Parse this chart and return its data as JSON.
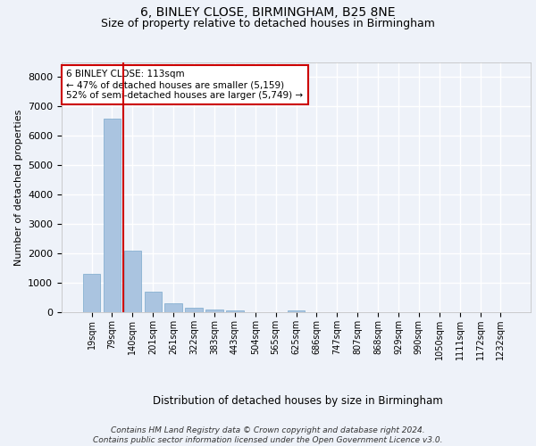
{
  "title": "6, BINLEY CLOSE, BIRMINGHAM, B25 8NE",
  "subtitle": "Size of property relative to detached houses in Birmingham",
  "xlabel": "Distribution of detached houses by size in Birmingham",
  "ylabel": "Number of detached properties",
  "footer_line1": "Contains HM Land Registry data © Crown copyright and database right 2024.",
  "footer_line2": "Contains public sector information licensed under the Open Government Licence v3.0.",
  "annotation_line1": "6 BINLEY CLOSE: 113sqm",
  "annotation_line2": "← 47% of detached houses are smaller (5,159)",
  "annotation_line3": "52% of semi-detached houses are larger (5,749) →",
  "bar_categories": [
    "19sqm",
    "79sqm",
    "140sqm",
    "201sqm",
    "261sqm",
    "322sqm",
    "383sqm",
    "443sqm",
    "504sqm",
    "565sqm",
    "625sqm",
    "686sqm",
    "747sqm",
    "807sqm",
    "868sqm",
    "929sqm",
    "990sqm",
    "1050sqm",
    "1111sqm",
    "1172sqm",
    "1232sqm"
  ],
  "bar_values": [
    1300,
    6600,
    2100,
    700,
    290,
    150,
    100,
    60,
    0,
    0,
    60,
    0,
    0,
    0,
    0,
    0,
    0,
    0,
    0,
    0,
    0
  ],
  "bar_color": "#aac4e0",
  "bar_edgecolor": "#7aa8cc",
  "ylim": [
    0,
    8500
  ],
  "yticks": [
    0,
    1000,
    2000,
    3000,
    4000,
    5000,
    6000,
    7000,
    8000
  ],
  "background_color": "#eef2f9",
  "plot_background": "#eef2f9",
  "grid_color": "#ffffff",
  "annotation_box_color": "#ffffff",
  "annotation_box_edgecolor": "#cc0000",
  "red_line_color": "#cc0000",
  "title_fontsize": 10,
  "subtitle_fontsize": 9,
  "xlabel_fontsize": 8.5,
  "ylabel_fontsize": 8,
  "tick_fontsize": 7,
  "annotation_fontsize": 7.5,
  "footer_fontsize": 6.5
}
